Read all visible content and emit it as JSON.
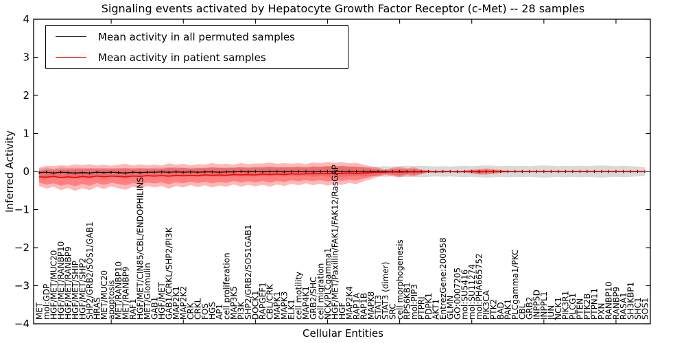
{
  "figure": {
    "title": "Signaling events activated by Hepatocyte Growth Factor Receptor (c-Met) -- 28 samples",
    "xlabel": "Cellular Entities",
    "ylabel": "Inferred Activity",
    "legend": [
      {
        "label": "Mean activity in all permuted samples",
        "color": "#000000"
      },
      {
        "label": "Mean activity in patient samples",
        "color": "#ff0000"
      }
    ]
  },
  "chart_data": {
    "type": "line",
    "title": "Signaling events activated by Hepatocyte Growth Factor Receptor (c-Met) -- 28 samples",
    "xlabel": "Cellular Entities",
    "ylabel": "Inferred Activity",
    "ylim": [
      -4,
      4
    ],
    "yticks": [
      -4,
      -3,
      -2,
      -1,
      0,
      1,
      2,
      3,
      4
    ],
    "yticklabels": [
      "−4",
      "−3",
      "−2",
      "−1",
      "0",
      "1",
      "2",
      "3",
      "4"
    ],
    "grid": false,
    "legend_position": "upper left",
    "band_note": "shaded bands are mean ± std; red band has darker inner core",
    "categories": [
      "MET",
      "mol:GDP",
      "HGF/MET/MUC20",
      "HGF/MET/RANBP10",
      "HGF/MET/RANBP9",
      "HGF/MET/SHIP",
      "HGF/MET/SHP2",
      "SHP2/GRB2/SOS1/GAB1",
      "HRAS",
      "MET/MUC20",
      "apoptosis",
      "MET/RANBP10",
      "MET/RANBP9",
      "RAF1",
      "HGF/MET/CIN85/CBL/ENDOPHILINS",
      "MET/Glomulin",
      "GAB1",
      "HGF/MET",
      "GAB1/CRKL/SHP2/PI3K",
      "MAP2K1",
      "MAP2K2",
      "CRK",
      "CRKL",
      "FOS",
      "HGS",
      "AP1",
      "cell proliferation",
      "MAP3K5",
      "PI3K",
      "SHP2/GRB2/SOS1GAB1",
      "DOCK1",
      "RAPGEF1",
      "CBL/CRK",
      "MAPK1",
      "MAPK3",
      "ELK1",
      "cell motility",
      "MAP4K1",
      "GRB2/SHC",
      "cell migration",
      "NCK/PLCgamma1",
      "HGF/MET/Paxillin/FAK1/FAK12/RasGAP",
      "HGF",
      "MAP2K4",
      "RAP1A",
      "RAP1B",
      "MAPK8",
      "STAT3",
      "STAT3 (dimer)",
      "SRC",
      "cell morphogenesis",
      "RPS6KB1",
      "mol:PIP3",
      "PTPRJ",
      "PDPK1",
      "AKT1",
      "EntrezGene:200958",
      "GLMN",
      "GO:0007205",
      "mol:SU5416",
      "mol:SU11274",
      "mol:PHA665752",
      "PIK3CA",
      "PTK2",
      "BAD",
      "PAK1",
      "PLCgamma1/PKC",
      "CBL",
      "GRB2",
      "INPP5D",
      "INPPL1",
      "JUN",
      "NCK1",
      "PIK3R1",
      "PLCG1",
      "PTEN",
      "PTK2B",
      "PTPN11",
      "PXN",
      "RANBP10",
      "RANBP9",
      "RASA1",
      "SH3KBP1",
      "SHC1",
      "SOS1"
    ],
    "series": [
      {
        "name": "Mean activity in all permuted samples",
        "color": "#000000",
        "values": [
          -0.03,
          -0.02,
          -0.04,
          -0.02,
          -0.03,
          -0.04,
          -0.03,
          -0.04,
          -0.02,
          -0.03,
          -0.02,
          -0.03,
          -0.04,
          -0.02,
          -0.03,
          -0.02,
          -0.02,
          -0.01,
          -0.02,
          -0.01,
          -0.02,
          -0.01,
          -0.02,
          -0.01,
          -0.01,
          -0.02,
          -0.01,
          -0.01,
          0.0,
          -0.01,
          0.0,
          -0.01,
          0.0,
          0.0,
          -0.01,
          0.0,
          0.0,
          0.0,
          -0.01,
          0.0,
          0.0,
          0.0,
          0.0,
          0.0,
          0.0,
          0.0,
          0.0,
          0.0,
          0.0,
          0.0,
          0.0,
          0.0,
          0.0,
          0.0,
          0.0,
          0.0,
          0.0,
          0.0,
          0.0,
          0.0,
          0.0,
          0.0,
          0.0,
          0.0,
          0.0,
          0.0,
          0.0,
          0.0,
          0.0,
          0.0,
          0.0,
          0.0,
          0.0,
          0.0,
          0.0,
          0.0,
          0.0,
          0.0,
          0.0,
          0.0,
          0.0,
          0.0,
          0.0,
          0.0,
          0.0
        ],
        "std": [
          0.1,
          0.12,
          0.11,
          0.13,
          0.12,
          0.14,
          0.12,
          0.13,
          0.11,
          0.12,
          0.11,
          0.12,
          0.13,
          0.11,
          0.12,
          0.11,
          0.12,
          0.11,
          0.13,
          0.12,
          0.12,
          0.11,
          0.12,
          0.11,
          0.12,
          0.12,
          0.11,
          0.12,
          0.11,
          0.12,
          0.12,
          0.11,
          0.12,
          0.11,
          0.12,
          0.12,
          0.13,
          0.12,
          0.13,
          0.12,
          0.14,
          0.13,
          0.14,
          0.13,
          0.12,
          0.13,
          0.12,
          0.13,
          0.14,
          0.13,
          0.14,
          0.15,
          0.14,
          0.15,
          0.14,
          0.13,
          0.14,
          0.13,
          0.14,
          0.15,
          0.14,
          0.15,
          0.16,
          0.15,
          0.14,
          0.15,
          0.14,
          0.15,
          0.14,
          0.15,
          0.16,
          0.15,
          0.14,
          0.15,
          0.14,
          0.15,
          0.14,
          0.15,
          0.16,
          0.15,
          0.14,
          0.15,
          0.14,
          0.13,
          0.12
        ]
      },
      {
        "name": "Mean activity in patient samples",
        "color": "#ff0000",
        "values": [
          -0.14,
          -0.15,
          -0.13,
          -0.16,
          -0.14,
          -0.16,
          -0.13,
          -0.15,
          -0.12,
          -0.14,
          -0.12,
          -0.13,
          -0.14,
          -0.12,
          -0.13,
          -0.11,
          -0.12,
          -0.11,
          -0.12,
          -0.1,
          -0.11,
          -0.1,
          -0.11,
          -0.09,
          -0.1,
          -0.09,
          -0.1,
          -0.08,
          -0.09,
          -0.08,
          -0.09,
          -0.07,
          -0.08,
          -0.07,
          -0.08,
          -0.06,
          -0.07,
          -0.06,
          -0.06,
          -0.05,
          -0.06,
          -0.05,
          -0.05,
          -0.04,
          -0.05,
          -0.04,
          -0.03,
          -0.02,
          -0.02,
          -0.01,
          -0.02,
          -0.01,
          -0.01,
          -0.01,
          0.0,
          -0.01,
          0.0,
          0.0,
          -0.01,
          0.0,
          0.0,
          -0.01,
          0.0,
          0.0,
          0.0,
          0.0,
          0.0,
          0.0,
          0.0,
          0.0,
          0.0,
          0.0,
          0.0,
          0.0,
          0.0,
          0.0,
          0.0,
          0.0,
          0.0,
          0.0,
          0.0,
          0.0,
          0.0,
          0.0,
          0.0
        ],
        "std": [
          0.24,
          0.3,
          0.27,
          0.33,
          0.29,
          0.35,
          0.3,
          0.34,
          0.28,
          0.32,
          0.27,
          0.31,
          0.34,
          0.28,
          0.32,
          0.27,
          0.3,
          0.27,
          0.33,
          0.28,
          0.31,
          0.26,
          0.3,
          0.27,
          0.32,
          0.28,
          0.3,
          0.26,
          0.31,
          0.27,
          0.3,
          0.28,
          0.32,
          0.27,
          0.3,
          0.26,
          0.29,
          0.25,
          0.3,
          0.27,
          0.31,
          0.28,
          0.3,
          0.26,
          0.28,
          0.22,
          0.17,
          0.12,
          0.07,
          0.11,
          0.14,
          0.09,
          0.12,
          0.06,
          0.03,
          0.02,
          0.03,
          0.02,
          0.02,
          0.03,
          0.05,
          0.07,
          0.08,
          0.06,
          0.04,
          0.02,
          0.02,
          0.02,
          0.02,
          0.02,
          0.02,
          0.02,
          0.02,
          0.02,
          0.02,
          0.02,
          0.02,
          0.02,
          0.02,
          0.02,
          0.02,
          0.02,
          0.02,
          0.02,
          0.02
        ]
      }
    ]
  }
}
